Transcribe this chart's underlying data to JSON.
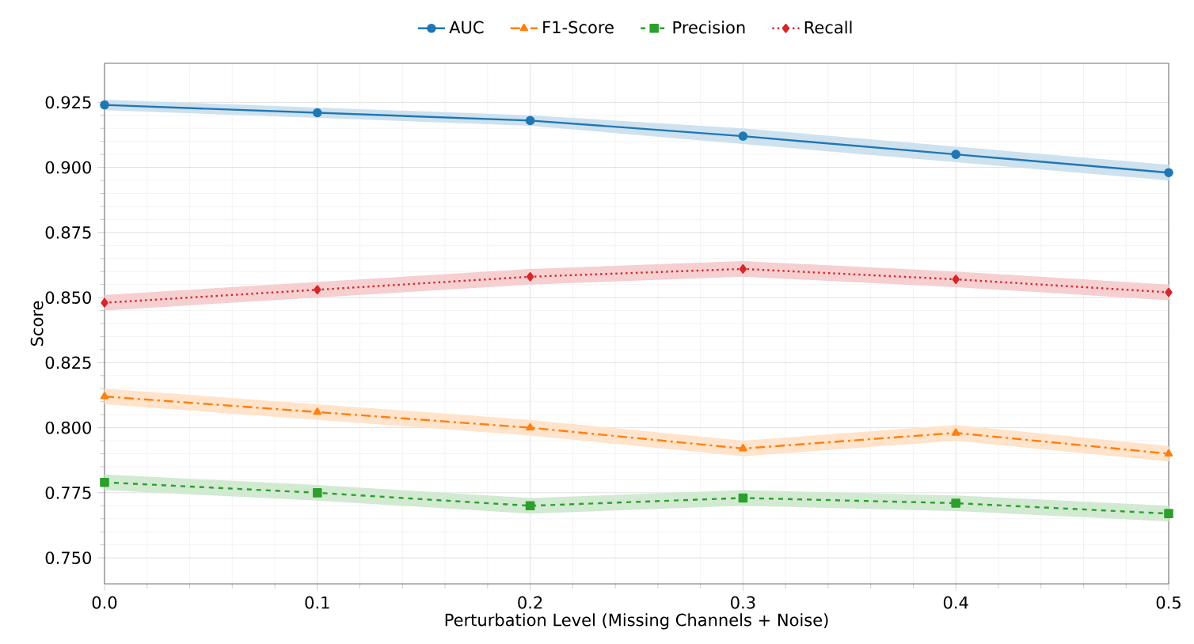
{
  "chart_data": {
    "type": "line",
    "xlabel": "Perturbation Level (Missing Channels + Noise)",
    "ylabel": "Score",
    "x": [
      0.0,
      0.1,
      0.2,
      0.3,
      0.4,
      0.5
    ],
    "series": [
      {
        "name": "AUC",
        "color": "#1f77b4",
        "marker": "circle",
        "line_style": "solid",
        "values": [
          0.924,
          0.921,
          0.918,
          0.912,
          0.905,
          0.898
        ],
        "lower": [
          0.922,
          0.919,
          0.916,
          0.909,
          0.902,
          0.895
        ],
        "upper": [
          0.926,
          0.923,
          0.92,
          0.915,
          0.908,
          0.901
        ]
      },
      {
        "name": "F1-Score",
        "color": "#ff7f0e",
        "marker": "triangle",
        "line_style": "dashdot",
        "values": [
          0.812,
          0.806,
          0.8,
          0.792,
          0.798,
          0.79
        ],
        "lower": [
          0.809,
          0.803,
          0.797,
          0.789,
          0.795,
          0.787
        ],
        "upper": [
          0.815,
          0.809,
          0.803,
          0.795,
          0.801,
          0.793
        ]
      },
      {
        "name": "Precision",
        "color": "#2ca02c",
        "marker": "square",
        "line_style": "dashed",
        "values": [
          0.779,
          0.775,
          0.77,
          0.773,
          0.771,
          0.767
        ],
        "lower": [
          0.776,
          0.772,
          0.767,
          0.77,
          0.768,
          0.764
        ],
        "upper": [
          0.782,
          0.778,
          0.773,
          0.776,
          0.774,
          0.77
        ]
      },
      {
        "name": "Recall",
        "color": "#d62728",
        "marker": "diamond",
        "line_style": "dotted",
        "values": [
          0.848,
          0.853,
          0.858,
          0.861,
          0.857,
          0.852
        ],
        "lower": [
          0.845,
          0.85,
          0.855,
          0.858,
          0.854,
          0.849
        ],
        "upper": [
          0.851,
          0.856,
          0.861,
          0.864,
          0.86,
          0.855
        ]
      }
    ],
    "xlim": [
      0,
      0.5
    ],
    "ylim": [
      0.74,
      0.94
    ],
    "xticks": [
      {
        "value": 0,
        "label": "0.0"
      },
      0.1,
      0.2,
      0.3,
      0.4,
      0.5
    ],
    "yticks": [
      {
        "value": 0.75,
        "label": "0.750"
      },
      0.775,
      {
        "value": 0.8,
        "label": "0.800"
      },
      0.825,
      {
        "value": 0.85,
        "label": "0.850"
      },
      0.875,
      {
        "value": 0.9,
        "label": "0.900"
      },
      0.925
    ],
    "grid": true,
    "legend": "top"
  }
}
